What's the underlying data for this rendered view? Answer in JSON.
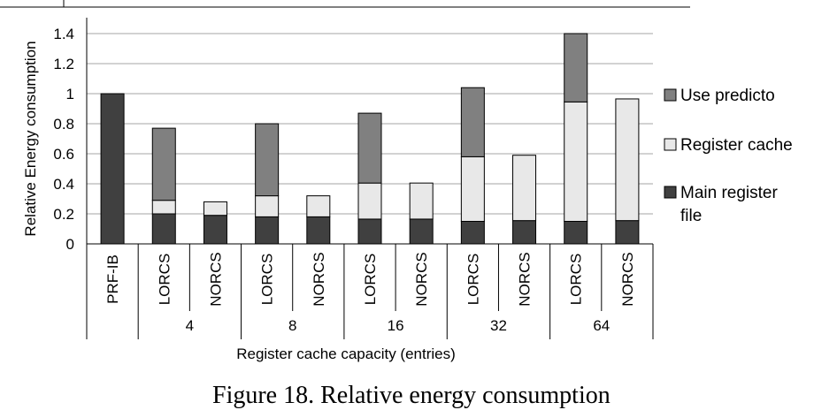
{
  "chart_data": {
    "type": "stacked-bar",
    "ylabel": "Relative Energy consumption",
    "xlabel": "Register cache capacity (entries)",
    "ylim": [
      0,
      1.4
    ],
    "yticks": [
      0,
      0.2,
      0.4,
      0.6,
      0.8,
      1,
      1.2,
      1.4
    ],
    "ytick_labels": [
      "0",
      "0.2",
      "0.4",
      "0.6",
      "0.8",
      "1",
      "1.2",
      "1.4"
    ],
    "grid": true,
    "legend_position": "right",
    "categories": [
      "PRF-IB",
      "LORCS",
      "NORCS",
      "LORCS",
      "NORCS",
      "LORCS",
      "NORCS",
      "LORCS",
      "NORCS",
      "LORCS",
      "NORCS"
    ],
    "groups": [
      {
        "label": "",
        "span": 1
      },
      {
        "label": "4",
        "span": 2
      },
      {
        "label": "8",
        "span": 2
      },
      {
        "label": "16",
        "span": 2
      },
      {
        "label": "32",
        "span": 2
      },
      {
        "label": "64",
        "span": 2
      }
    ],
    "series": [
      {
        "name": "Main register file",
        "color": "#404040",
        "values": [
          1.0,
          0.2,
          0.19,
          0.18,
          0.18,
          0.165,
          0.165,
          0.15,
          0.155,
          0.15,
          0.155
        ]
      },
      {
        "name": "Register cache",
        "color": "#e8e8e8",
        "values": [
          0,
          0.09,
          0.09,
          0.14,
          0.14,
          0.24,
          0.24,
          0.43,
          0.435,
          0.795,
          0.81
        ]
      },
      {
        "name": "Use predicto",
        "color": "#808080",
        "values": [
          0,
          0.48,
          0,
          0.48,
          0,
          0.465,
          0,
          0.46,
          0,
          0.455,
          0
        ]
      }
    ],
    "legend": [
      {
        "label": "Use predicto",
        "color": "#808080"
      },
      {
        "label": "Register cache",
        "color": "#e8e8e8"
      },
      {
        "label": "Main register",
        "label2": "file",
        "color": "#404040"
      }
    ]
  },
  "caption": "Figure 18.    Relative energy consumption"
}
